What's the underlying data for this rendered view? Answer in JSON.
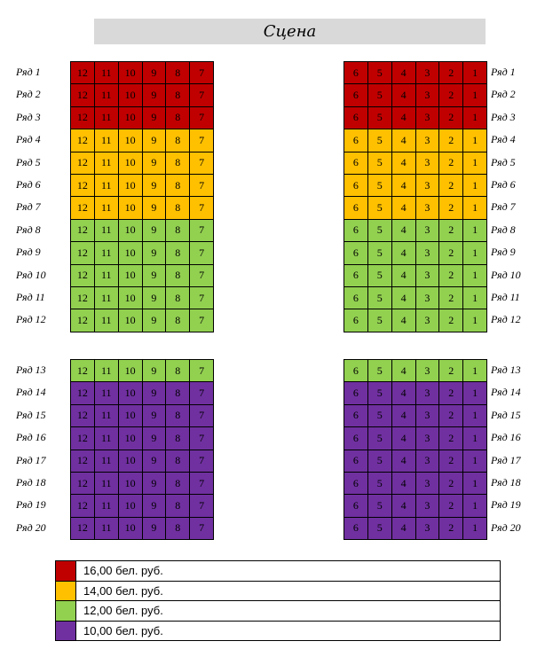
{
  "stage": {
    "label": "Сцена"
  },
  "colors": {
    "price_16": "#c00000",
    "price_14": "#ffc000",
    "price_12": "#92d050",
    "price_10": "#7030a0"
  },
  "row_labels": [
    "Ряд 1",
    "Ряд 2",
    "Ряд 3",
    "Ряд 4",
    "Ряд 5",
    "Ряд 6",
    "Ряд 7",
    "Ряд 8",
    "Ряд 9",
    "Ряд 10",
    "Ряд 11",
    "Ряд 12",
    "Ряд 13",
    "Ряд 14",
    "Ряд 15",
    "Ряд 16",
    "Ряд 17",
    "Ряд 18",
    "Ряд 19",
    "Ряд 20"
  ],
  "row_price": [
    "price_16",
    "price_16",
    "price_16",
    "price_14",
    "price_14",
    "price_14",
    "price_14",
    "price_12",
    "price_12",
    "price_12",
    "price_12",
    "price_12",
    "price_12",
    "price_10",
    "price_10",
    "price_10",
    "price_10",
    "price_10",
    "price_10",
    "price_10"
  ],
  "left_seats": [
    "12",
    "11",
    "10",
    "9",
    "8",
    "7"
  ],
  "right_seats": [
    "6",
    "5",
    "4",
    "3",
    "2",
    "1"
  ],
  "legend": [
    {
      "color": "price_16",
      "label": "16,00 бел. руб."
    },
    {
      "color": "price_14",
      "label": "14,00 бел. руб."
    },
    {
      "color": "price_12",
      "label": "12,00 бел. руб."
    },
    {
      "color": "price_10",
      "label": "10,00 бел. руб."
    }
  ]
}
